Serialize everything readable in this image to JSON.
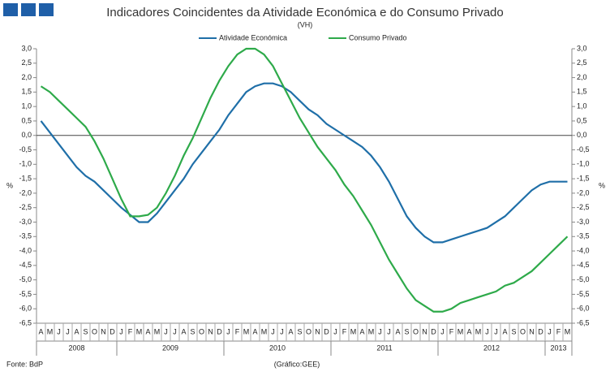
{
  "chart_data": {
    "type": "line",
    "title": "Indicadores Coincidentes da Atividade Económica e do Consumo Privado",
    "subtitle": "(VH)",
    "y_label": "%",
    "y2_label": "%",
    "source": "Fonte: BdP",
    "credit": "(Gráfico:GEE)",
    "legend": "top",
    "categories": [
      "A",
      "M",
      "J",
      "J",
      "A",
      "S",
      "O",
      "N",
      "D",
      "J",
      "F",
      "M",
      "A",
      "M",
      "J",
      "J",
      "A",
      "S",
      "O",
      "N",
      "D",
      "J",
      "F",
      "M",
      "A",
      "M",
      "J",
      "J",
      "A",
      "S",
      "O",
      "N",
      "D",
      "J",
      "F",
      "M",
      "A",
      "M",
      "J",
      "J",
      "A",
      "S",
      "O",
      "N",
      "D",
      "J",
      "F",
      "M",
      "A",
      "M",
      "J",
      "J",
      "A",
      "S",
      "O",
      "N",
      "D",
      "J",
      "F",
      "M"
    ],
    "years": [
      "2008",
      "2009",
      "2010",
      "2011",
      "2012",
      "2013"
    ],
    "series": [
      {
        "name": "Atividade Económica",
        "color": "#1f6fa8",
        "values": [
          0.5,
          0.1,
          -0.3,
          -0.7,
          -1.1,
          -1.4,
          -1.6,
          -1.9,
          -2.2,
          -2.5,
          -2.75,
          -3.0,
          -3.0,
          -2.7,
          -2.3,
          -1.9,
          -1.5,
          -1.0,
          -0.6,
          -0.2,
          0.2,
          0.7,
          1.1,
          1.5,
          1.7,
          1.8,
          1.8,
          1.7,
          1.5,
          1.2,
          0.9,
          0.7,
          0.4,
          0.2,
          0.0,
          -0.2,
          -0.4,
          -0.7,
          -1.1,
          -1.6,
          -2.2,
          -2.8,
          -3.2,
          -3.5,
          -3.7,
          -3.7,
          -3.6,
          -3.5,
          -3.4,
          -3.3,
          -3.2,
          -3.0,
          -2.8,
          -2.5,
          -2.2,
          -1.9,
          -1.7,
          -1.6,
          -1.6,
          -1.6
        ]
      },
      {
        "name": "Consumo Privado",
        "color": "#2eaa4a",
        "values": [
          1.7,
          1.5,
          1.2,
          0.9,
          0.6,
          0.3,
          -0.2,
          -0.8,
          -1.5,
          -2.2,
          -2.8,
          -2.8,
          -2.75,
          -2.5,
          -2.0,
          -1.4,
          -0.7,
          -0.1,
          0.6,
          1.3,
          1.9,
          2.4,
          2.8,
          3.0,
          3.0,
          2.8,
          2.4,
          1.8,
          1.2,
          0.6,
          0.1,
          -0.4,
          -0.8,
          -1.2,
          -1.7,
          -2.1,
          -2.6,
          -3.1,
          -3.7,
          -4.3,
          -4.8,
          -5.3,
          -5.7,
          -5.9,
          -6.1,
          -6.1,
          -6.0,
          -5.8,
          -5.7,
          -5.6,
          -5.5,
          -5.4,
          -5.2,
          -5.1,
          -4.9,
          -4.7,
          -4.4,
          -4.1,
          -3.8,
          -3.5
        ]
      }
    ],
    "ylim": [
      -6.5,
      3
    ],
    "yticks": [
      {
        "value": 3,
        "label": "3,0"
      },
      {
        "value": 2.5,
        "label": "2,5"
      },
      {
        "value": 2,
        "label": "2,0"
      },
      {
        "value": 1.5,
        "label": "1,5"
      },
      {
        "value": 1,
        "label": "1,0"
      },
      {
        "value": 0.5,
        "label": "0,5"
      },
      {
        "value": 0,
        "label": "0,0"
      },
      {
        "value": -0.5,
        "label": "-0,5"
      },
      {
        "value": -1,
        "label": "-1,0"
      },
      {
        "value": -1.5,
        "label": "-1,5"
      },
      {
        "value": -2,
        "label": "-2,0"
      },
      {
        "value": -2.5,
        "label": "-2,5"
      },
      {
        "value": -3,
        "label": "-3,0"
      },
      {
        "value": -3.5,
        "label": "-3,5"
      },
      {
        "value": -4,
        "label": "-4,0"
      },
      {
        "value": -4.5,
        "label": "-4,5"
      },
      {
        "value": -5,
        "label": "-5,0"
      },
      {
        "value": -5.5,
        "label": "-5,5"
      },
      {
        "value": -6,
        "label": "-6,0"
      },
      {
        "value": -6.5,
        "label": "-6,5"
      }
    ],
    "y2lim": [
      -6.5,
      3
    ],
    "y2ticks": [
      {
        "value": 3,
        "label": "3,0"
      },
      {
        "value": 2.5,
        "label": "2,5"
      },
      {
        "value": 2,
        "label": "2,0"
      },
      {
        "value": 1.5,
        "label": "1,5"
      },
      {
        "value": 1,
        "label": "1,0"
      },
      {
        "value": 0.5,
        "label": "0,5"
      },
      {
        "value": 0,
        "label": "0,0"
      },
      {
        "value": -0.5,
        "label": "-0,5"
      },
      {
        "value": -1,
        "label": "-1,0"
      },
      {
        "value": -1.5,
        "label": "-1,5"
      },
      {
        "value": -2,
        "label": "-2,0"
      },
      {
        "value": -2.5,
        "label": "-2,5"
      },
      {
        "value": -3,
        "label": "-3,0"
      },
      {
        "value": -3.5,
        "label": "-3,5"
      },
      {
        "value": -4,
        "label": "-4,0"
      },
      {
        "value": -4.5,
        "label": "-4,5"
      },
      {
        "value": -5,
        "label": "-5,0"
      },
      {
        "value": -5.5,
        "label": "-5,5"
      },
      {
        "value": -6,
        "label": "-6,0"
      },
      {
        "value": -6.5,
        "label": "-6,5"
      }
    ]
  }
}
